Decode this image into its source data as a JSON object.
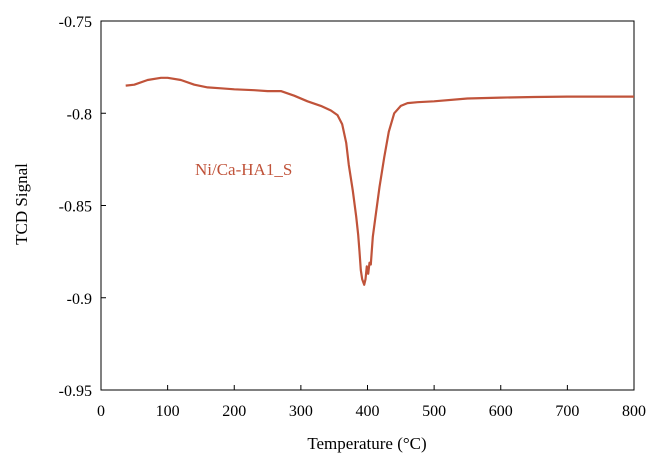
{
  "chart_data": {
    "type": "line",
    "title": "",
    "xlabel": "Temperature (°C)",
    "ylabel": "TCD Signal",
    "xlim": [
      0,
      800
    ],
    "ylim": [
      -0.95,
      -0.75
    ],
    "xticks": [
      0,
      100,
      200,
      300,
      400,
      500,
      600,
      700,
      800
    ],
    "yticks": [
      -0.75,
      -0.8,
      -0.85,
      -0.9,
      -0.95
    ],
    "ytick_labels": [
      "-0.75",
      "-0.8",
      "-0.85",
      "-0.9",
      "-0.95"
    ],
    "grid": false,
    "legend": "none",
    "series": [
      {
        "name": "Ni/Ca-HA1_S",
        "color": "#c0533a",
        "x": [
          37,
          50,
          70,
          90,
          100,
          120,
          140,
          160,
          180,
          200,
          230,
          250,
          270,
          290,
          310,
          330,
          345,
          355,
          362,
          368,
          372,
          378,
          383,
          386,
          388,
          390,
          392,
          395,
          397,
          399,
          401,
          403,
          405,
          408,
          412,
          418,
          425,
          432,
          440,
          450,
          460,
          475,
          500,
          550,
          600,
          650,
          700,
          750,
          800
        ],
        "y": [
          -0.785,
          -0.7845,
          -0.782,
          -0.7808,
          -0.7808,
          -0.782,
          -0.7845,
          -0.786,
          -0.7865,
          -0.787,
          -0.7875,
          -0.788,
          -0.788,
          -0.7905,
          -0.7935,
          -0.796,
          -0.7985,
          -0.801,
          -0.806,
          -0.816,
          -0.828,
          -0.842,
          -0.856,
          -0.866,
          -0.875,
          -0.885,
          -0.89,
          -0.893,
          -0.89,
          -0.883,
          -0.887,
          -0.881,
          -0.882,
          -0.867,
          -0.856,
          -0.84,
          -0.824,
          -0.81,
          -0.8,
          -0.796,
          -0.7945,
          -0.794,
          -0.7935,
          -0.792,
          -0.7915,
          -0.7912,
          -0.791,
          -0.791,
          -0.791
        ]
      }
    ]
  }
}
